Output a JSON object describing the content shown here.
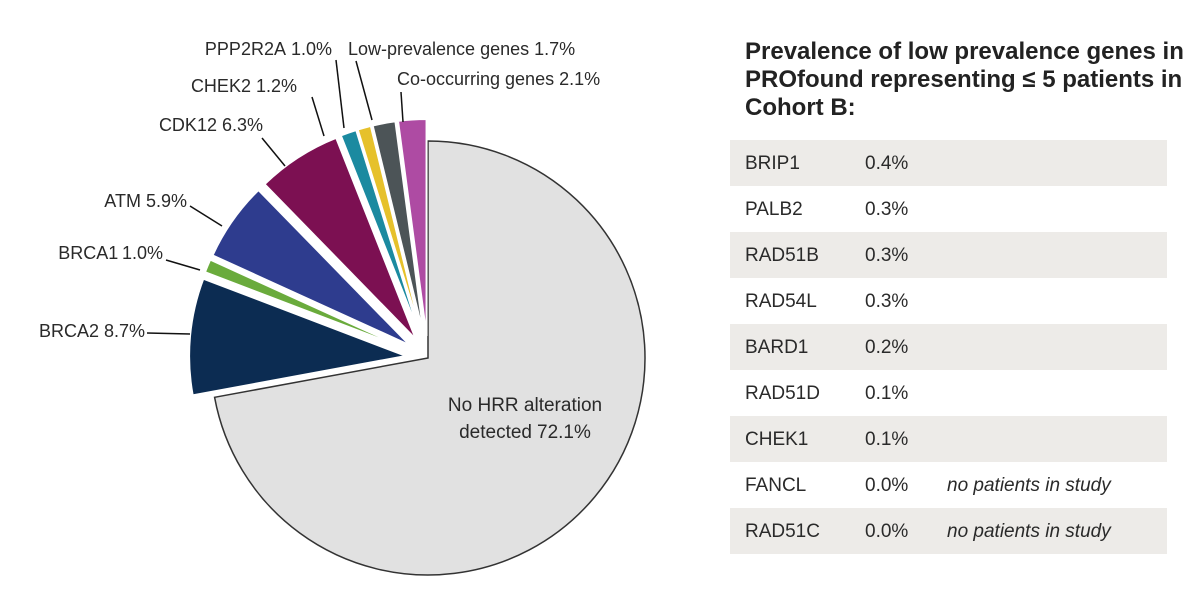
{
  "chart_data": {
    "type": "pie",
    "categories": [
      "No HRR alteration detected",
      "BRCA2",
      "BRCA1",
      "ATM",
      "CDK12",
      "CHEK2",
      "PPP2R2A",
      "Low-prevalence genes",
      "Co-occurring genes"
    ],
    "values": [
      72.1,
      8.7,
      1.0,
      5.9,
      6.3,
      1.2,
      1.0,
      1.7,
      2.1
    ],
    "value_labels": [
      "72.1%",
      "8.7%",
      "1.0%",
      "5.9%",
      "6.3%",
      "1.2%",
      "1.0%",
      "1.7%",
      "2.1%"
    ],
    "colors": [
      "#e1e1e1",
      "#0c2c52",
      "#6aab3c",
      "#2e3c8e",
      "#7c1052",
      "#1b8aa0",
      "#e6c12b",
      "#4c5457",
      "#ae4ba3"
    ]
  },
  "table": {
    "title": "Prevalence of low prevalence genes in PROfound representing ≤ 5 patients in Cohort B:",
    "rows": [
      [
        "BRIP1",
        "0.4%"
      ],
      [
        "PALB2",
        "0.3%"
      ],
      [
        "RAD51B",
        "0.3%"
      ],
      [
        "RAD54L",
        "0.3%"
      ],
      [
        "BARD1",
        "0.2%"
      ],
      [
        "RAD51D",
        "0.1%"
      ],
      [
        "CHEK1",
        "0.1%"
      ],
      [
        "FANCL",
        "0.0%",
        "no patients in study"
      ],
      [
        "RAD51C",
        "0.0%",
        "no patients in study"
      ]
    ]
  }
}
